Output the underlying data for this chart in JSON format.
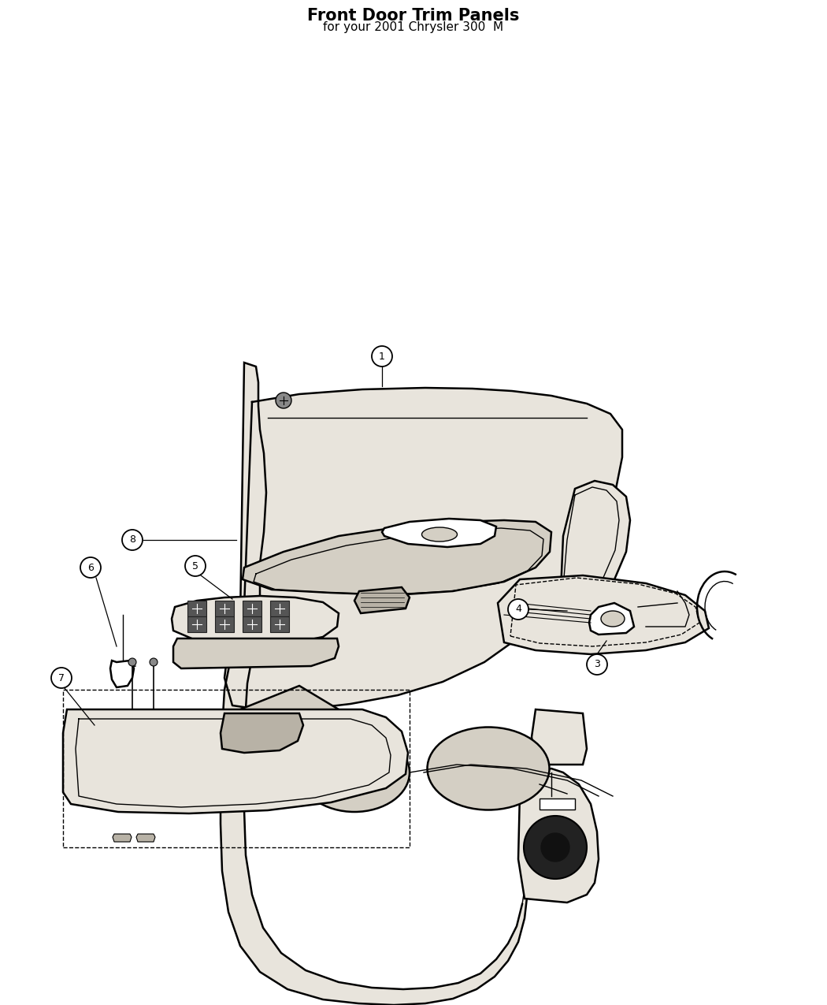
{
  "title": "Front Door Trim Panels",
  "subtitle": "for your 2001 Chrysler 300  M",
  "bg_color": "#ffffff",
  "lc": "#000000",
  "fill_light": "#e8e4dc",
  "fill_mid": "#d4cfc4",
  "fill_dark": "#b8b2a6"
}
